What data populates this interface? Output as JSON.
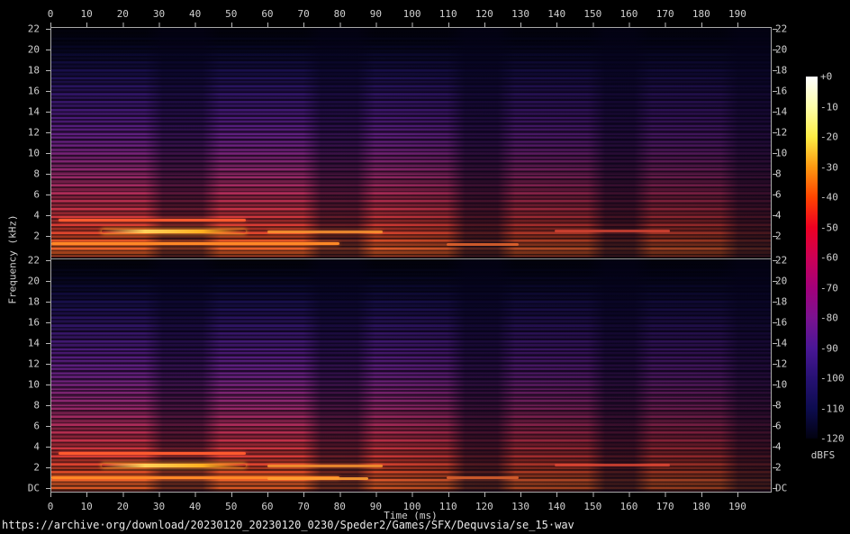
{
  "figure": {
    "caption_url": "https://archive·org/download/20230120_20230120_0230/Speder2/Games/SFX/Dequvsia/se_15·wav",
    "x_axis_title": "Time (ms)",
    "y_axis_title": "Frequency (kHz)",
    "colorbar_title": "dBFS",
    "background_color": "#000000",
    "axis_color": "#a8a8a8",
    "label_color": "#d0d0d0"
  },
  "axes": {
    "time_ticks": [
      "0",
      "10",
      "20",
      "30",
      "40",
      "50",
      "60",
      "70",
      "80",
      "90",
      "100",
      "110",
      "120",
      "130",
      "140",
      "150",
      "160",
      "170",
      "180",
      "190"
    ],
    "freq_ticks_channel1": [
      "22",
      "20",
      "18",
      "16",
      "14",
      "12",
      "10",
      "8",
      "6",
      "4",
      "2"
    ],
    "freq_ticks_channel2": [
      "22",
      "20",
      "18",
      "16",
      "14",
      "12",
      "10",
      "8",
      "6",
      "4",
      "2",
      "DC"
    ]
  },
  "colorbar": {
    "labels": [
      "+0",
      "-10",
      "-20",
      "-30",
      "-40",
      "-50",
      "-60",
      "-70",
      "-80",
      "-90",
      "-100",
      "-110",
      "-120"
    ],
    "title": "dBFS",
    "palette_top_to_bottom": [
      "#ffffff",
      "#ffffaa",
      "#ffee44",
      "#ff9911",
      "#ff4400",
      "#ee0022",
      "#cc0055",
      "#a3007a",
      "#7a1290",
      "#4a1695",
      "#261173",
      "#0d0c50",
      "#020210"
    ]
  },
  "chart_data": {
    "type": "heatmap",
    "subtype": "audio-spectrogram",
    "channels": 2,
    "x": {
      "label": "Time (ms)",
      "range_ms": [
        0,
        199
      ],
      "tick_step_ms": 10
    },
    "y": {
      "label": "Frequency (kHz)",
      "range_khz": [
        0,
        22
      ],
      "tick_step_khz": 2,
      "bottom_label": "DC"
    },
    "z": {
      "label": "dBFS",
      "range_db": [
        -120,
        0
      ],
      "colormap": "sox-spectrogram (black-blue-purple-magenta-red-orange-yellow-white)"
    },
    "legend_position": "right-colorbar",
    "grid": false,
    "content_summary": {
      "energy_bursts_ms": [
        [
          0,
          29
        ],
        [
          44,
          72
        ],
        [
          87,
          112
        ],
        [
          126,
          150
        ],
        [
          163,
          187
        ]
      ],
      "inter_burst_gaps_ms": [
        [
          29,
          44
        ],
        [
          72,
          87
        ],
        [
          112,
          126
        ],
        [
          150,
          163
        ],
        [
          187,
          199
        ]
      ],
      "burst_peak_levels_db_approx": [
        -15,
        -15,
        -30,
        -40,
        -45
      ],
      "brightest_region": "1-3 kHz at 18-50 ms, approx -10 to 0 dBFS (yellow-white streaks)",
      "high_freq_18_22khz_level_db_approx": -110,
      "harmonic_striping": "dense horizontal comb lines ~0.35 kHz apart across full band",
      "channel_similarity": "both channels show nearly identical burst pattern"
    }
  }
}
